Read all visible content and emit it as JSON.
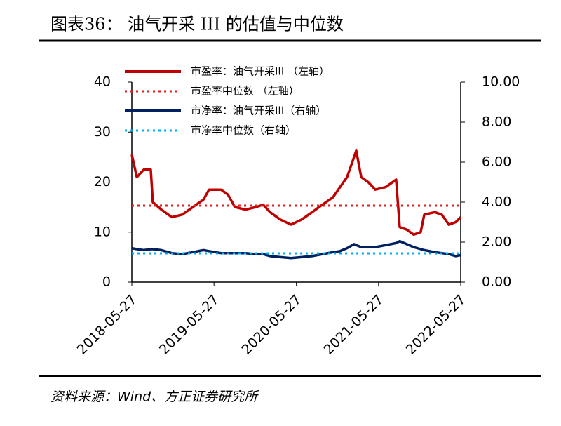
{
  "chart_data": {
    "type": "line",
    "title": "图表36：  油气开采 III 的估值与中位数",
    "source": "资料来源：Wind、方正证券研究所",
    "x": [
      "2018-05-27",
      "2018-06-18",
      "2018-07-19",
      "2018-08-19",
      "2018-08-28",
      "2018-10-05",
      "2018-11-21",
      "2019-01-06",
      "2019-02-22",
      "2019-04-10",
      "2019-05-05",
      "2019-06-27",
      "2019-07-28",
      "2019-08-28",
      "2019-10-14",
      "2019-11-29",
      "2019-12-31",
      "2020-01-31",
      "2020-03-17",
      "2020-05-03",
      "2020-06-19",
      "2020-08-05",
      "2020-09-20",
      "2020-11-06",
      "2020-12-07",
      "2021-01-07",
      "2021-02-07",
      "2021-02-17",
      "2021-03-11",
      "2021-04-11",
      "2021-05-12",
      "2021-06-28",
      "2021-08-13",
      "2021-08-29",
      "2021-09-29",
      "2021-10-30",
      "2021-11-30",
      "2021-12-16",
      "2022-02-01",
      "2022-03-04",
      "2022-04-04",
      "2022-05-05",
      "2022-05-27"
    ],
    "xlim": [
      "2018-05-27",
      "2022-05-27"
    ],
    "xticks": [
      "2018-05-27",
      "2019-05-27",
      "2020-05-27",
      "2021-05-27",
      "2022-05-27"
    ],
    "ylim": [
      0,
      40
    ],
    "yticks": [
      0,
      10,
      20,
      30,
      40
    ],
    "y2lim": [
      0,
      10
    ],
    "y2ticks": [
      {
        "value": 0,
        "label": "0.00"
      },
      {
        "value": 2,
        "label": "2.00"
      },
      {
        "value": 4,
        "label": "4.00"
      },
      {
        "value": 6,
        "label": "6.00"
      },
      {
        "value": 8,
        "label": "8.00"
      },
      {
        "value": 10,
        "label": "10.00"
      }
    ],
    "series": [
      {
        "name": "市盈率：油气开采III （左轴）",
        "color": "#c00000",
        "style": "solid",
        "values": [
          25.5,
          21,
          22.5,
          22.5,
          16,
          14.5,
          13,
          13.5,
          15,
          16.5,
          18.5,
          18.5,
          17.5,
          15,
          14.5,
          15,
          15.5,
          14,
          12.5,
          11.5,
          12.5,
          14,
          15.5,
          17,
          19,
          21,
          25,
          26.3,
          21,
          20,
          18.5,
          19,
          20.5,
          11,
          10.5,
          9.5,
          10,
          13.5,
          14,
          13.5,
          11.5,
          12,
          13
        ]
      },
      {
        "name": "市盈率中位数 （左轴）",
        "color": "#e02020",
        "style": "dotted",
        "value": 15.3
      },
      {
        "name": "市净率：油气开采III（右轴）",
        "color": "#002060",
        "style": "solid",
        "axis": "y2",
        "values": [
          1.7,
          1.65,
          1.6,
          1.65,
          1.65,
          1.6,
          1.45,
          1.4,
          1.5,
          1.6,
          1.55,
          1.45,
          1.45,
          1.45,
          1.45,
          1.4,
          1.4,
          1.3,
          1.25,
          1.2,
          1.25,
          1.3,
          1.4,
          1.5,
          1.55,
          1.7,
          1.9,
          1.85,
          1.75,
          1.75,
          1.75,
          1.85,
          1.95,
          2.05,
          1.9,
          1.75,
          1.65,
          1.6,
          1.5,
          1.45,
          1.4,
          1.3,
          1.35
        ]
      },
      {
        "name": "市净率中位数（右轴）",
        "color": "#00b0f0",
        "style": "dotted",
        "axis": "y2",
        "value": 1.44
      }
    ]
  }
}
